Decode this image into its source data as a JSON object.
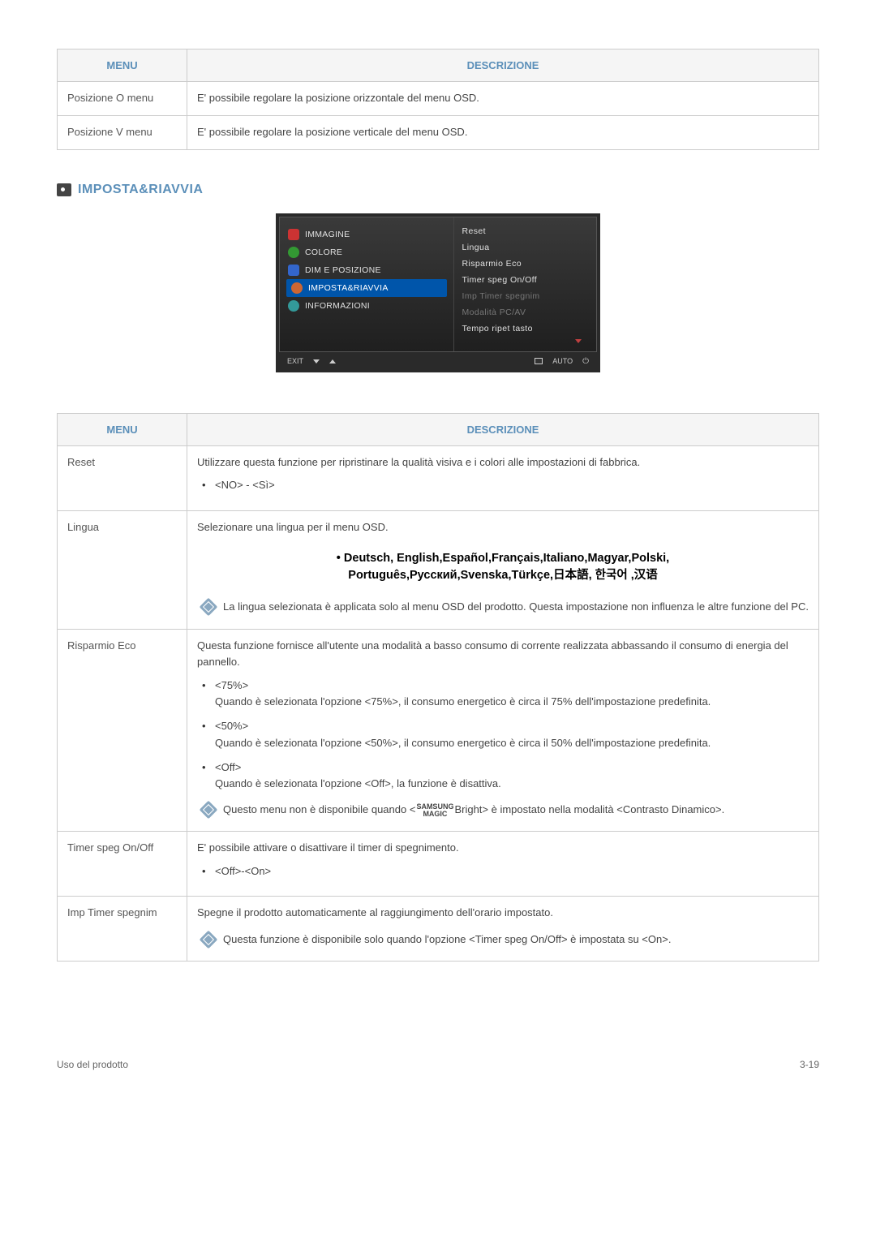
{
  "table1": {
    "headers": {
      "menu": "MENU",
      "desc": "DESCRIZIONE"
    },
    "rows": [
      {
        "menu": "Posizione O menu",
        "desc": "E' possibile regolare la posizione orizzontale del menu OSD."
      },
      {
        "menu": "Posizione V menu",
        "desc": "E' possibile regolare la posizione verticale del menu OSD."
      }
    ]
  },
  "section": {
    "title": "IMPOSTA&RIAVVIA"
  },
  "osd": {
    "left": [
      {
        "label": "IMMAGINE",
        "icon": "ico-red"
      },
      {
        "label": "COLORE",
        "icon": "ico-green"
      },
      {
        "label": "DIM E POSIZIONE",
        "icon": "ico-blue"
      },
      {
        "label": "IMPOSTA&RIAVVIA",
        "icon": "ico-orange",
        "selected": true
      },
      {
        "label": "INFORMAZIONI",
        "icon": "ico-teal"
      }
    ],
    "right": [
      {
        "label": "Reset",
        "dim": false
      },
      {
        "label": "Lingua",
        "dim": false
      },
      {
        "label": "Risparmio Eco",
        "dim": false
      },
      {
        "label": "Timer speg On/Off",
        "dim": false
      },
      {
        "label": "Imp Timer spegnim",
        "dim": true
      },
      {
        "label": "Modalità PC/AV",
        "dim": true
      },
      {
        "label": "Tempo ripet tasto",
        "dim": false
      }
    ],
    "bottom": {
      "exit": "EXIT",
      "auto": "AUTO"
    }
  },
  "table2": {
    "headers": {
      "menu": "MENU",
      "desc": "DESCRIZIONE"
    },
    "reset": {
      "menu": "Reset",
      "desc": "Utilizzare questa funzione per ripristinare la qualità visiva e i colori alle impostazioni di fabbrica.",
      "opt": "<NO> - <Sì>"
    },
    "lingua": {
      "menu": "Lingua",
      "desc": "Selezionare una lingua per il menu OSD.",
      "langs1": "• Deutsch, English,Español,Français,Italiano,Magyar,Polski,",
      "langs2": "Português,Русский,Svenska,Türkçe,日本語, 한국어 ,汉语",
      "note": "La lingua selezionata è applicata solo al menu OSD del prodotto. Questa impostazione non influenza le altre funzione del PC."
    },
    "eco": {
      "menu": "Risparmio Eco",
      "desc": "Questa funzione fornisce all'utente una modalità a basso consumo di corrente realizzata abbassando il consumo di energia del pannello.",
      "opt75h": "<75%>",
      "opt75": "Quando è selezionata l'opzione <75%>, il consumo energetico è circa il 75% dell'impostazione predefinita.",
      "opt50h": "<50%>",
      "opt50": "Quando è selezionata l'opzione <50%>, il consumo energetico è circa il 50% dell'impostazione predefinita.",
      "optoffh": "<Off>",
      "optoff": "Quando è selezionata l'opzione <Off>, la funzione è disattiva.",
      "note_a": "Questo menu non è disponibile quando <",
      "note_m1": "SAMSUNG",
      "note_m2": "MAGIC",
      "note_b": "Bright> è impostato nella modalità <Contrasto Dinamico>."
    },
    "timer": {
      "menu": "Timer speg On/Off",
      "desc": "E' possibile attivare o disattivare il timer di spegnimento.",
      "opt": "<Off>-<On>"
    },
    "imp": {
      "menu": "Imp Timer spegnim",
      "desc": "Spegne il prodotto automaticamente al raggiungimento dell'orario impostato.",
      "note": "Questa funzione è disponibile solo quando l'opzione <Timer speg On/Off> è impostata su <On>."
    }
  },
  "footer": {
    "left": "Uso del prodotto",
    "right": "3-19"
  }
}
